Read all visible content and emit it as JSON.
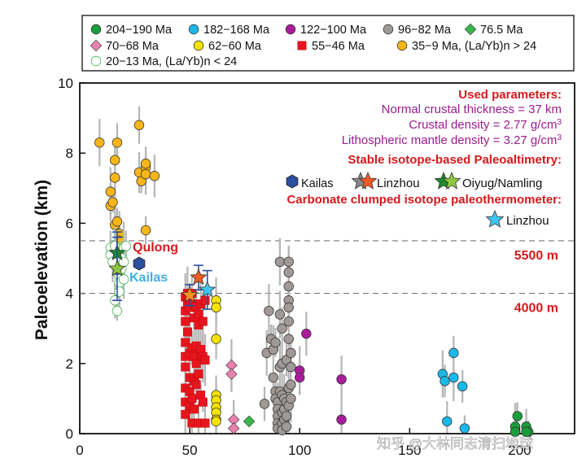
{
  "chart_data": {
    "type": "scatter",
    "ylabel": "Paleoelevation (km)",
    "xlabel": "",
    "xlim": [
      0,
      225
    ],
    "ylim": [
      0,
      10
    ],
    "xticks": [
      0,
      50,
      100,
      150,
      200
    ],
    "yticks": [
      0,
      2,
      4,
      6,
      8,
      10
    ],
    "reference_lines": [
      {
        "y": 5.5,
        "label": "5500 m"
      },
      {
        "y": 4.0,
        "label": "4000 m"
      }
    ],
    "legend": {
      "position": "top",
      "entries": [
        {
          "label": "204−190 Ma",
          "marker": "circle",
          "color": "#1a9e3a",
          "fill": true
        },
        {
          "label": "182−168 Ma",
          "marker": "circle",
          "color": "#1ab8e8",
          "fill": true
        },
        {
          "label": "122−100 Ma",
          "marker": "circle",
          "color": "#a81c9c",
          "fill": true
        },
        {
          "label": "96−82 Ma",
          "marker": "circle",
          "color": "#9f9a97",
          "fill": true
        },
        {
          "label": "76.5 Ma",
          "marker": "diamond",
          "color": "#3ab54a",
          "fill": true
        },
        {
          "label": "70−68 Ma",
          "marker": "diamond",
          "color": "#e880b0",
          "fill": true
        },
        {
          "label": "62−60 Ma",
          "marker": "circle",
          "color": "#f5e400",
          "fill": true
        },
        {
          "label": "55−46 Ma",
          "marker": "square",
          "color": "#e6161e",
          "fill": true
        },
        {
          "label": "35−9 Ma, (La/Yb)n > 24",
          "marker": "circle",
          "color": "#f7b618",
          "fill": true
        },
        {
          "label": "20−13 Ma, (La/Yb)n < 24",
          "marker": "circle",
          "color": "#3ab54a",
          "fill": false
        }
      ]
    },
    "annotations": {
      "used_params_title": "Used parameters:",
      "param_lines": [
        {
          "pre": "Normal crustal thickness = 37 km",
          "sup": "",
          "post": ""
        },
        {
          "pre": "Crustal density = 2.77 g/cm",
          "sup": "3",
          "post": ""
        },
        {
          "pre": "Lithospheric mantle density = 3.27 g/cm",
          "sup": "3",
          "post": ""
        }
      ],
      "isotope_title": "Stable isotope-based Paleoaltimetry:",
      "isotope_items": [
        "Kailas",
        "Linzhou",
        "Oiyug/Namling"
      ],
      "clumped_title": "Carbonate clumped isotope paleothermometer:",
      "clumped_item": "Linzhou",
      "region_labels": [
        "Qulong",
        "Kailas"
      ],
      "watermark": "知乎 @大林同志清扫地球"
    },
    "series": [
      {
        "name": "204−190 Ma",
        "points": [
          [
            199,
            0.5
          ],
          [
            198,
            0.2
          ],
          [
            203,
            0.2
          ],
          [
            204,
            0.05
          ],
          [
            198,
            0.05
          ],
          [
            203,
            0.05
          ]
        ]
      },
      {
        "name": "182−168 Ma",
        "points": [
          [
            165,
            1.7
          ],
          [
            166,
            1.5
          ],
          [
            170,
            2.3
          ],
          [
            170,
            1.6
          ],
          [
            174,
            1.35
          ],
          [
            167,
            0.35
          ],
          [
            175,
            0.15
          ]
        ]
      },
      {
        "name": "122−100 Ma",
        "points": [
          [
            100,
            1.8
          ],
          [
            100,
            1.6
          ],
          [
            103,
            2.85
          ],
          [
            119,
            1.55
          ],
          [
            119,
            0.4
          ]
        ]
      },
      {
        "name": "96−82 Ma",
        "points": [
          [
            84,
            0.85
          ],
          [
            85,
            2.3
          ],
          [
            86,
            3.5
          ],
          [
            87,
            2.7
          ],
          [
            88,
            2.4
          ],
          [
            88,
            1.6
          ],
          [
            89,
            2.6
          ],
          [
            89,
            1.2
          ],
          [
            89,
            1.0
          ],
          [
            90,
            0.9
          ],
          [
            90,
            0.7
          ],
          [
            90,
            0.5
          ],
          [
            90,
            0.3
          ],
          [
            90,
            0.15
          ],
          [
            91,
            4.9
          ],
          [
            91,
            3.4
          ],
          [
            91,
            1.9
          ],
          [
            91,
            1.2
          ],
          [
            92,
            3.0
          ],
          [
            92,
            2.0
          ],
          [
            92,
            1.1
          ],
          [
            92,
            0.6
          ],
          [
            92,
            0.3
          ],
          [
            92,
            0.1
          ],
          [
            93,
            1.0
          ],
          [
            93,
            0.7
          ],
          [
            93,
            0.4
          ],
          [
            94,
            2.1
          ],
          [
            94,
            0.9
          ],
          [
            94,
            0.5
          ],
          [
            94,
            0.2
          ],
          [
            95,
            4.9
          ],
          [
            95,
            4.6
          ],
          [
            95,
            4.2
          ],
          [
            95,
            3.8
          ],
          [
            95,
            3.6
          ],
          [
            95,
            3.2
          ],
          [
            95,
            2.7
          ],
          [
            95,
            1.3
          ],
          [
            95,
            0.8
          ],
          [
            96,
            2.3
          ],
          [
            96,
            1.9
          ],
          [
            96,
            1.4
          ],
          [
            96,
            1.0
          ]
        ]
      },
      {
        "name": "76.5 Ma",
        "points": [
          [
            77,
            0.35
          ]
        ]
      },
      {
        "name": "70−68 Ma",
        "points": [
          [
            69,
            1.95
          ],
          [
            69,
            1.7
          ],
          [
            70,
            0.4
          ],
          [
            70,
            0.15
          ]
        ]
      },
      {
        "name": "62−60 Ma",
        "points": [
          [
            62,
            3.8
          ],
          [
            62,
            3.6
          ],
          [
            62,
            2.7
          ],
          [
            62,
            1.1
          ],
          [
            62,
            0.95
          ],
          [
            62,
            0.75
          ],
          [
            62,
            0.6
          ],
          [
            62,
            0.4
          ],
          [
            62,
            0.35
          ]
        ]
      },
      {
        "name": "55−46 Ma",
        "points": [
          [
            48,
            3.9
          ],
          [
            48,
            3.5
          ],
          [
            48,
            3.2
          ],
          [
            48,
            2.6
          ],
          [
            48,
            2.2
          ],
          [
            48,
            1.9
          ],
          [
            48,
            1.3
          ],
          [
            48,
            0.9
          ],
          [
            48,
            0.55
          ],
          [
            49,
            4.0
          ],
          [
            49,
            3.7
          ],
          [
            49,
            2.9
          ],
          [
            50,
            3.6
          ],
          [
            50,
            2.3
          ],
          [
            50,
            1.6
          ],
          [
            50,
            1.2
          ],
          [
            50,
            0.8
          ],
          [
            51,
            4.0
          ],
          [
            51,
            2.45
          ],
          [
            51,
            1.0
          ],
          [
            51,
            0.3
          ],
          [
            52,
            3.7
          ],
          [
            52,
            3.3
          ],
          [
            52,
            2.2
          ],
          [
            52,
            1.5
          ],
          [
            52,
            0.7
          ],
          [
            53,
            3.6
          ],
          [
            53,
            2.5
          ],
          [
            53,
            2.0
          ],
          [
            53,
            1.4
          ],
          [
            54,
            3.4
          ],
          [
            54,
            3.1
          ],
          [
            54,
            1.7
          ],
          [
            54,
            0.3
          ],
          [
            55,
            3.7
          ],
          [
            55,
            2.4
          ],
          [
            55,
            1.1
          ],
          [
            56,
            3.2
          ],
          [
            56,
            2.2
          ],
          [
            56,
            0.9
          ],
          [
            57,
            3.8
          ],
          [
            57,
            2.1
          ],
          [
            57,
            0.3
          ]
        ]
      },
      {
        "name": "35−9 Ma, (La/Yb)n > 24",
        "points": [
          [
            9,
            8.3
          ],
          [
            14,
            6.9
          ],
          [
            14,
            6.5
          ],
          [
            15,
            6.6
          ],
          [
            16,
            7.8
          ],
          [
            16,
            7.3
          ],
          [
            16,
            5.95
          ],
          [
            17,
            8.3
          ],
          [
            17,
            6.05
          ],
          [
            18,
            5.7
          ],
          [
            18,
            5.5
          ],
          [
            27,
            8.8
          ],
          [
            27,
            7.45
          ],
          [
            28,
            7.2
          ],
          [
            30,
            7.6
          ],
          [
            30,
            7.4
          ],
          [
            30,
            7.7
          ],
          [
            30,
            5.8
          ],
          [
            34,
            7.35
          ]
        ]
      },
      {
        "name": "20−13 Ma, (La/Yb)n < 24",
        "points": [
          [
            14,
            5.3
          ],
          [
            14,
            5.1
          ],
          [
            15,
            4.9
          ],
          [
            16,
            5.35
          ],
          [
            16,
            3.8
          ],
          [
            17,
            3.5
          ],
          [
            18,
            4.5
          ],
          [
            18,
            4.3
          ],
          [
            18,
            4.05
          ],
          [
            19,
            5.0
          ],
          [
            19,
            4.7
          ],
          [
            20,
            5.3
          ],
          [
            20,
            4.9
          ],
          [
            21,
            5.35
          ],
          [
            20,
            4.4
          ]
        ]
      }
    ],
    "isotope_estimates": [
      {
        "name": "Kailas",
        "marker": "hexagon",
        "color": "#2b4e9e",
        "x": 27,
        "y": 4.85
      },
      {
        "name": "Linzhou",
        "marker": "star",
        "color": "#f15a24",
        "x": 54,
        "y": 4.45,
        "yerr": 0.35
      },
      {
        "name": "Linzhou",
        "marker": "star",
        "color": "#f7931e",
        "x": 50,
        "y": 3.95,
        "yerr": 0.3
      },
      {
        "name": "Oiyug/Namling",
        "marker": "star",
        "color": "#1d8a2e",
        "x": 17,
        "y": 5.15,
        "yerr": 0.6
      },
      {
        "name": "Oiyug/Namling",
        "marker": "star",
        "color": "#8dc63f",
        "x": 17,
        "y": 4.7,
        "yerr": 0.9
      },
      {
        "name": "Linzhou (clumped)",
        "marker": "star",
        "color": "#41c4ef",
        "x": 58,
        "y": 4.1,
        "yerr": 0.55
      }
    ]
  }
}
